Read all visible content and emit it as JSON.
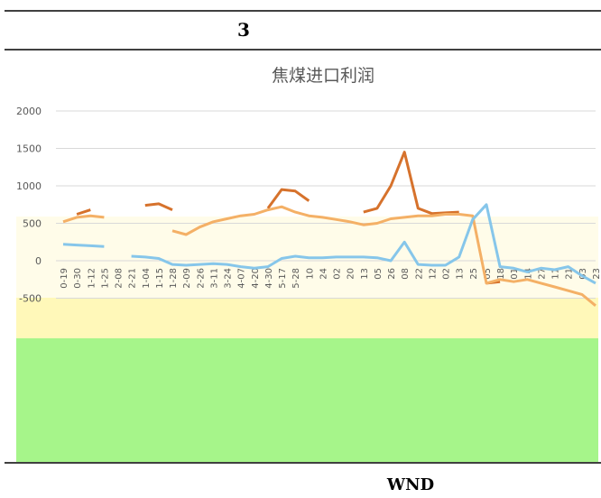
{
  "header": {
    "figure": "3"
  },
  "chart_data": {
    "type": "line",
    "title": "焦煤进口利润",
    "categories": [
      "0-19",
      "0-30",
      "1-12",
      "1-25",
      "2-08",
      "2-21",
      "1-04",
      "1-15",
      "1-28",
      "2-09",
      "2-26",
      "3-11",
      "3-24",
      "4-07",
      "4-20",
      "4-30",
      "5-17",
      "5-28",
      "10",
      "24",
      "02",
      "20",
      "13",
      "05",
      "26",
      "08",
      "22",
      "12",
      "02",
      "13",
      "25",
      "05",
      "18",
      "01",
      "14",
      "27",
      "11",
      "21",
      "03",
      "23"
    ],
    "series": [
      {
        "color": "#d6722c",
        "values": [
          null,
          620,
          680,
          null,
          null,
          null,
          740,
          760,
          680,
          null,
          null,
          null,
          null,
          null,
          null,
          700,
          950,
          930,
          800,
          null,
          null,
          null,
          650,
          700,
          1000,
          1450,
          700,
          630,
          640,
          650,
          null,
          -300,
          -280,
          null,
          null,
          null,
          null,
          null,
          null,
          null
        ]
      },
      {
        "color": "#f4b066",
        "values": [
          520,
          580,
          600,
          580,
          null,
          null,
          null,
          null,
          400,
          350,
          450,
          520,
          560,
          600,
          620,
          680,
          720,
          650,
          600,
          580,
          550,
          520,
          480,
          500,
          560,
          580,
          600,
          600,
          620,
          620,
          600,
          -300,
          -250,
          -280,
          -250,
          -300,
          -350,
          -400,
          -450,
          -600
        ]
      },
      {
        "color": "#86c6ea",
        "values": [
          220,
          210,
          200,
          190,
          null,
          60,
          50,
          30,
          -50,
          -60,
          -50,
          -40,
          -50,
          -80,
          -100,
          -80,
          30,
          60,
          40,
          40,
          50,
          50,
          50,
          40,
          0,
          250,
          -50,
          -60,
          -60,
          50,
          550,
          750,
          -80,
          -100,
          -150,
          -100,
          -120,
          -80,
          -200,
          -300
        ]
      }
    ],
    "ylim": [
      -2500,
      2000
    ],
    "yticks": [
      -500,
      0,
      500,
      1000,
      1500,
      2000
    ],
    "grid": true
  },
  "footer": {
    "source": "WND"
  }
}
